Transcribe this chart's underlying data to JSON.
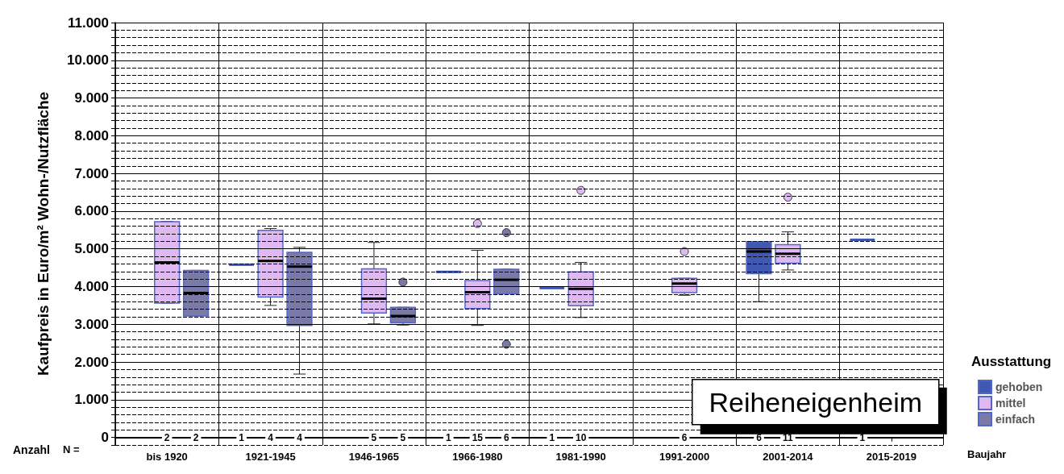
{
  "chart_data": {
    "type": "box",
    "title": "Reiheneigenheim",
    "xlabel": "Baujahr",
    "ylabel": "Kaufpreis in Euro/m² Wohn-/Nutzfläche",
    "legend_title": "Ausstattung",
    "legend": "right",
    "grid": true,
    "annotations": [
      "Anzahl",
      "N ="
    ],
    "categories": [
      "bis 1920",
      "1921-1945",
      "1946-1965",
      "1966-1980",
      "1981-1990",
      "1991-2000",
      "2001-2014",
      "2015-2019"
    ],
    "ylim": [
      -200,
      11000
    ],
    "yticks": [
      {
        "value": -200,
        "label": null
      },
      {
        "value": 0,
        "label": "0"
      },
      {
        "value": 200,
        "label": null
      },
      {
        "value": 400,
        "label": null
      },
      {
        "value": 600,
        "label": null
      },
      {
        "value": 800,
        "label": null
      },
      {
        "value": 1000,
        "label": "1.000"
      },
      {
        "value": 1200,
        "label": null
      },
      {
        "value": 1400,
        "label": null
      },
      {
        "value": 1600,
        "label": null
      },
      {
        "value": 1800,
        "label": null
      },
      {
        "value": 2000,
        "label": "2.000"
      },
      {
        "value": 2200,
        "label": null
      },
      {
        "value": 2400,
        "label": null
      },
      {
        "value": 2600,
        "label": null
      },
      {
        "value": 2800,
        "label": null
      },
      {
        "value": 3000,
        "label": "3.000"
      },
      {
        "value": 3200,
        "label": null
      },
      {
        "value": 3400,
        "label": null
      },
      {
        "value": 3600,
        "label": null
      },
      {
        "value": 3800,
        "label": null
      },
      {
        "value": 4000,
        "label": "4.000"
      },
      {
        "value": 4200,
        "label": null
      },
      {
        "value": 4400,
        "label": null
      },
      {
        "value": 4600,
        "label": null
      },
      {
        "value": 4800,
        "label": null
      },
      {
        "value": 5000,
        "label": "5.000"
      },
      {
        "value": 5200,
        "label": null
      },
      {
        "value": 5400,
        "label": null
      },
      {
        "value": 5600,
        "label": null
      },
      {
        "value": 5800,
        "label": null
      },
      {
        "value": 6000,
        "label": "6.000"
      },
      {
        "value": 6200,
        "label": null
      },
      {
        "value": 6400,
        "label": null
      },
      {
        "value": 6600,
        "label": null
      },
      {
        "value": 6800,
        "label": null
      },
      {
        "value": 7000,
        "label": "7.000"
      },
      {
        "value": 7200,
        "label": null
      },
      {
        "value": 7400,
        "label": null
      },
      {
        "value": 7600,
        "label": null
      },
      {
        "value": 7800,
        "label": null
      },
      {
        "value": 8000,
        "label": "8.000"
      },
      {
        "value": 8200,
        "label": null
      },
      {
        "value": 8400,
        "label": null
      },
      {
        "value": 8600,
        "label": null
      },
      {
        "value": 8800,
        "label": null
      },
      {
        "value": 9000,
        "label": "9.000"
      },
      {
        "value": 9200,
        "label": null
      },
      {
        "value": 9400,
        "label": null
      },
      {
        "value": 9600,
        "label": null
      },
      {
        "value": 9800,
        "label": null
      },
      {
        "value": 10000,
        "label": "10.000"
      },
      {
        "value": 10200,
        "label": null
      },
      {
        "value": 10400,
        "label": null
      },
      {
        "value": 10600,
        "label": null
      },
      {
        "value": 10800,
        "label": null
      },
      {
        "value": 11000,
        "label": "11.000"
      }
    ],
    "series": [
      {
        "name": "gehoben",
        "color": "#3f58b0",
        "value_labels": [
          null,
          "1",
          null,
          "1",
          "1",
          null,
          "6",
          "1"
        ],
        "boxes": [
          null,
          {
            "low": 4580,
            "q1": 4580,
            "median": 4580,
            "q3": 4580,
            "high": 4580
          },
          null,
          {
            "low": 4390,
            "q1": 4390,
            "median": 4390,
            "q3": 4390,
            "high": 4390
          },
          {
            "low": 3960,
            "q1": 3960,
            "median": 3960,
            "q3": 3960,
            "high": 3960
          },
          null,
          {
            "low": 3600,
            "q1": 4340,
            "median": 4930,
            "q3": 5190,
            "high": 5190
          },
          {
            "low": 5240,
            "q1": 5240,
            "median": 5240,
            "q3": 5240,
            "high": 5240
          }
        ]
      },
      {
        "name": "mittel",
        "color": "#e0b8f2",
        "value_labels": [
          "2",
          "4",
          "5",
          "15",
          "10",
          "6",
          "11",
          null
        ],
        "boxes": [
          {
            "low": 3560,
            "q1": 3560,
            "median": 4640,
            "q3": 5720,
            "high": 5730
          },
          {
            "low": 3500,
            "q1": 3720,
            "median": 4680,
            "q3": 5490,
            "high": 5540
          },
          {
            "low": 3010,
            "q1": 3300,
            "median": 3680,
            "q3": 4470,
            "high": 5170
          },
          {
            "low": 2970,
            "q1": 3420,
            "median": 3850,
            "q3": 4160,
            "high": 4960,
            "outliers": [
              5670
            ]
          },
          {
            "low": 3180,
            "q1": 3490,
            "median": 3940,
            "q3": 4390,
            "high": 4640,
            "outliers": [
              6550
            ]
          },
          {
            "low": 3770,
            "q1": 3840,
            "median": 4080,
            "q3": 4220,
            "high": 4220,
            "outliers": [
              4930
            ]
          },
          {
            "low": 4440,
            "q1": 4620,
            "median": 4870,
            "q3": 5110,
            "high": 5450,
            "outliers": [
              6370
            ]
          },
          null
        ]
      },
      {
        "name": "einfach",
        "color": "#7a7aa8",
        "value_labels": [
          "2",
          "4",
          "5",
          "6",
          null,
          null,
          null,
          null
        ],
        "boxes": [
          {
            "low": 3220,
            "q1": 3220,
            "median": 3830,
            "q3": 4430,
            "high": 4430
          },
          {
            "low": 1680,
            "q1": 2970,
            "median": 4530,
            "q3": 4910,
            "high": 5040
          },
          {
            "low": 2980,
            "q1": 3040,
            "median": 3220,
            "q3": 3450,
            "high": 3450,
            "outliers": [
              4120
            ]
          },
          {
            "low": 3810,
            "q1": 3810,
            "median": 4180,
            "q3": 4460,
            "high": 4460,
            "outliers": [
              5430,
              2470
            ]
          },
          null,
          null,
          null,
          null
        ]
      }
    ]
  }
}
